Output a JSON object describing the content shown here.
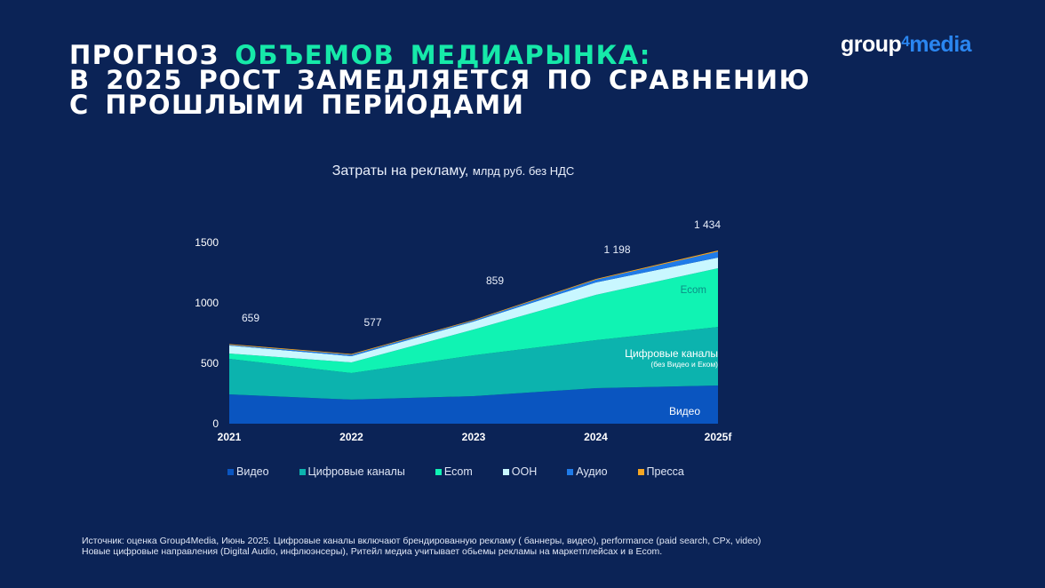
{
  "title": {
    "line1_a": "ПРОГНОЗ ",
    "line1_b": "ОБЪЕМОВ МЕДИАРЫНКА:",
    "line2": "В 2025 РОСТ ЗАМЕДЛЯЕТСЯ ПО СРАВНЕНИЮ",
    "line3": "С ПРОШЛЫМИ ПЕРИОДАМИ"
  },
  "logo": {
    "a": "group",
    "four": "4",
    "b": "media"
  },
  "chart_data": {
    "type": "area",
    "title": "Затраты на рекламу,",
    "subtitle": "млрд руб. без НДС",
    "categories": [
      "2021",
      "2022",
      "2023",
      "2024",
      "2025f"
    ],
    "ylim": [
      0,
      1500
    ],
    "yticks": [
      0,
      500,
      1000,
      1500
    ],
    "totals": [
      659,
      577,
      859,
      1198,
      1434
    ],
    "total_labels": [
      "659",
      "577",
      "859",
      "1 198",
      "1 434"
    ],
    "series": [
      {
        "name": "Видео",
        "color": "#0a55c0",
        "values": [
          243,
          199,
          228,
          294,
          316
        ]
      },
      {
        "name": "Цифровые каналы",
        "color": "#0cb3ae",
        "values": [
          294,
          220,
          338,
          397,
          485
        ]
      },
      {
        "name": "Ecom",
        "color": "#10f3b3",
        "values": [
          44,
          88,
          213,
          375,
          486
        ]
      },
      {
        "name": "OOH",
        "color": "#c9f7ff",
        "values": [
          66,
          52,
          67,
          103,
          88
        ]
      },
      {
        "name": "Аудио",
        "color": "#1f7be8",
        "values": [
          6,
          12,
          8,
          22,
          50
        ]
      },
      {
        "name": "Пресса",
        "color": "#f5a623",
        "values": [
          6,
          6,
          5,
          7,
          9
        ]
      }
    ],
    "annotations": {
      "ecom": "Ecom",
      "digital": "Цифровые каналы",
      "digital_sub": "(без Видео и Еком)",
      "video": "Видео"
    },
    "legend_position": "bottom"
  },
  "footer": {
    "line1": "Источник: оценка Group4Media, Июнь 2025. Цифровые каналы включают брендированную рекламу  ( баннеры, видео), performance (paid search, CPx, video)",
    "line2": "Новые цифровые направления  (Digital Audio, инфлюэнсеры),  Ритейл медиа учитывает обьемы рекламы на маркетплейсах и в  Ecom."
  }
}
